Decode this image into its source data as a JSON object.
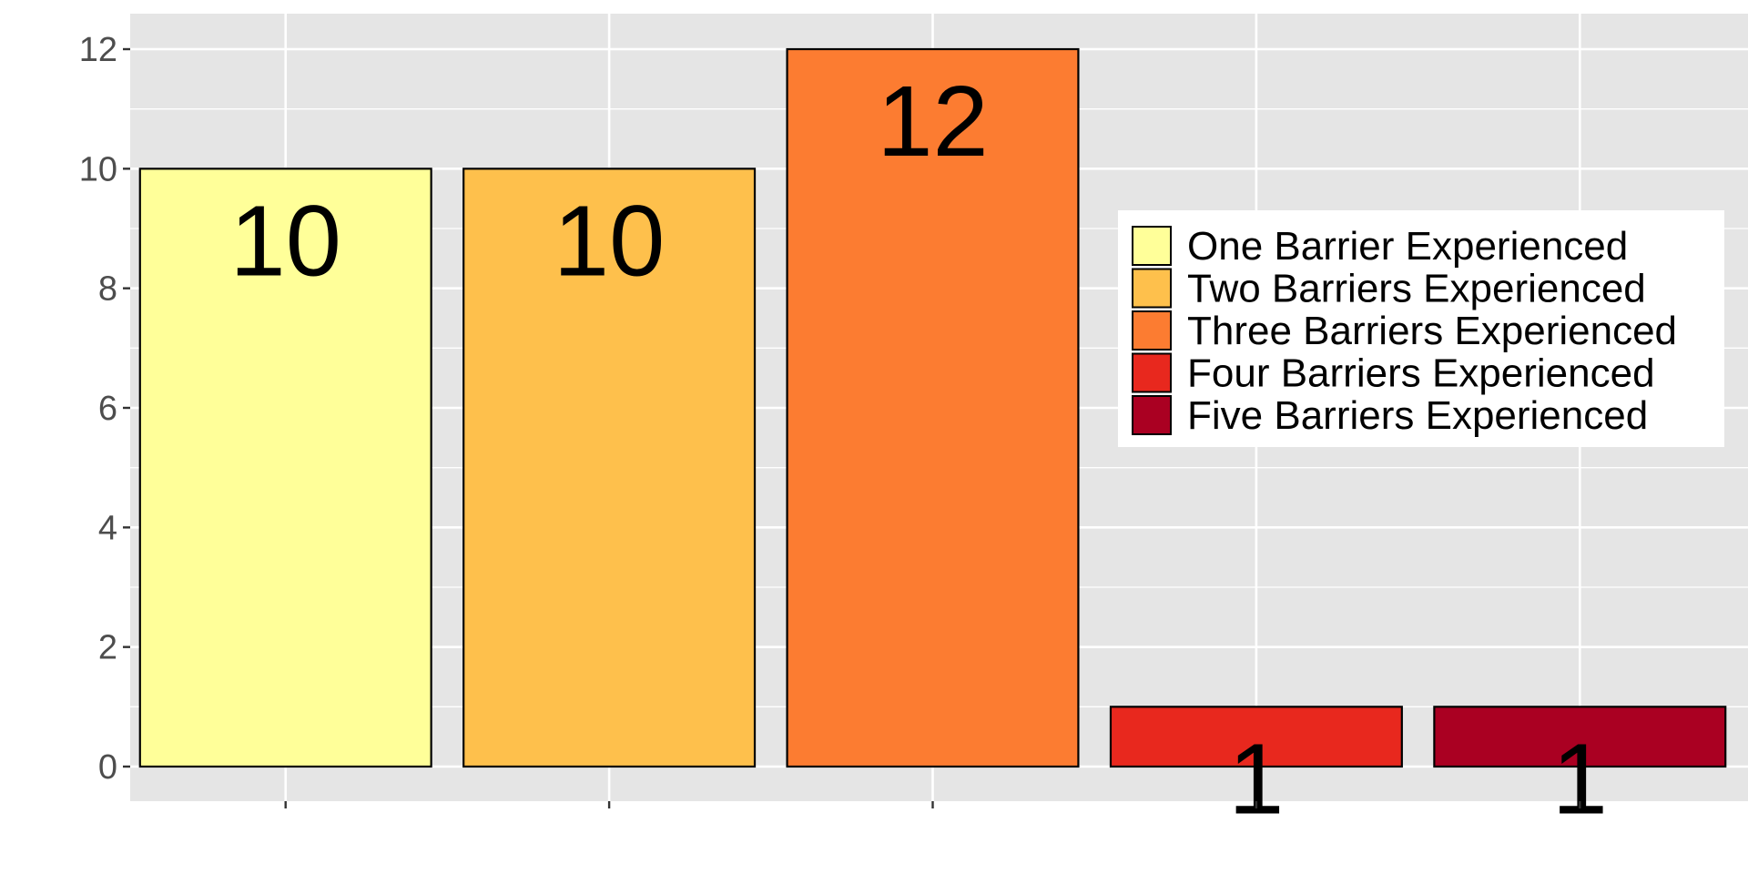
{
  "chart_data": {
    "type": "bar",
    "title": "",
    "xlabel": "",
    "ylabel": "",
    "categories": [
      "",
      "",
      "",
      "",
      ""
    ],
    "values": [
      10,
      10,
      12,
      1,
      1
    ],
    "data_labels": [
      "10",
      "10",
      "12",
      "1",
      "1"
    ],
    "colors": [
      "#FFFF99",
      "#FEC04C",
      "#FC7C31",
      "#E8281E",
      "#AA0022"
    ],
    "ylim": [
      0,
      12
    ],
    "y_ticks": [
      0,
      2,
      4,
      6,
      8,
      10,
      12
    ],
    "y_tick_labels": [
      "0",
      "2",
      "4",
      "6",
      "8",
      "10",
      "12"
    ],
    "grid": true,
    "legend": {
      "position": "right",
      "entries": [
        "One Barrier Experienced",
        "Two Barriers Experienced",
        "Three Barriers Experienced",
        "Four Barriers Experienced",
        "Five Barriers Experienced"
      ]
    },
    "panel_background": "#E5E5E5",
    "grid_color": "#FFFFFF"
  }
}
